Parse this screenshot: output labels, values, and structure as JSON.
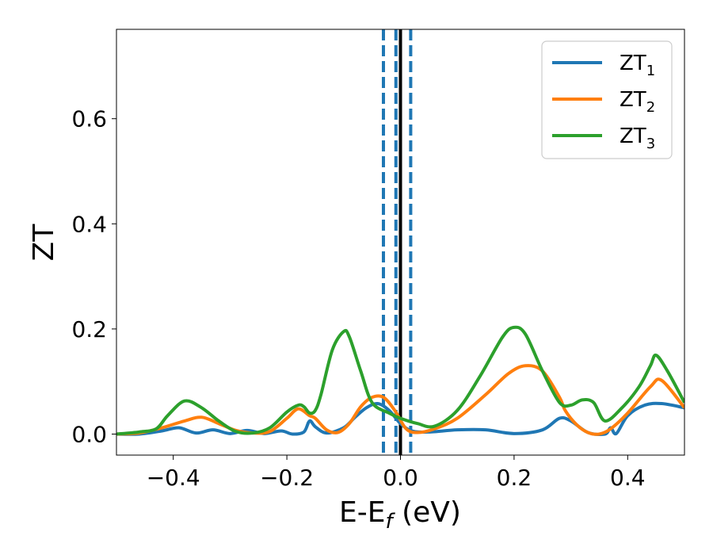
{
  "chart_data": {
    "type": "line",
    "xlabel_main": "E-E",
    "xlabel_sub": "f",
    "xlabel_unit": " (eV)",
    "ylabel": "ZT",
    "xlim": [
      -0.5,
      0.5
    ],
    "ylim": [
      -0.04,
      0.77
    ],
    "xticks": [
      -0.4,
      -0.2,
      0.0,
      0.2,
      0.4
    ],
    "xtick_labels": [
      "−0.4",
      "−0.2",
      "0.0",
      "0.2",
      "0.4"
    ],
    "yticks": [
      0.0,
      0.2,
      0.4,
      0.6
    ],
    "ytick_labels": [
      "0.0",
      "0.2",
      "0.4",
      "0.6"
    ],
    "grid": false,
    "legend_position": "top-right",
    "vlines": [
      {
        "x": 0.0,
        "style": "solid",
        "color": "#000000"
      },
      {
        "x": -0.03,
        "style": "dashed",
        "color": "#1f77b4"
      },
      {
        "x": -0.008,
        "style": "dashed",
        "color": "#1f77b4"
      },
      {
        "x": 0.018,
        "style": "dashed",
        "color": "#1f77b4"
      }
    ],
    "series": [
      {
        "name": "ZT",
        "sub": "1",
        "color": "#1f77b4",
        "x": [
          -0.5,
          -0.46,
          -0.42,
          -0.39,
          -0.36,
          -0.33,
          -0.3,
          -0.27,
          -0.24,
          -0.21,
          -0.19,
          -0.17,
          -0.16,
          -0.15,
          -0.13,
          -0.1,
          -0.08,
          -0.06,
          -0.04,
          -0.02,
          0.0,
          0.02,
          0.05,
          0.1,
          0.15,
          0.2,
          0.25,
          0.28,
          0.3,
          0.33,
          0.36,
          0.37,
          0.38,
          0.4,
          0.43,
          0.46,
          0.5
        ],
        "y": [
          0.0,
          0.0,
          0.006,
          0.012,
          0.002,
          0.008,
          0.001,
          0.007,
          0.001,
          0.006,
          0.0,
          0.004,
          0.025,
          0.014,
          0.002,
          0.012,
          0.032,
          0.05,
          0.058,
          0.045,
          0.02,
          0.006,
          0.004,
          0.008,
          0.008,
          0.001,
          0.008,
          0.03,
          0.025,
          0.003,
          0.0,
          0.012,
          0.001,
          0.035,
          0.055,
          0.058,
          0.05
        ]
      },
      {
        "name": "ZT",
        "sub": "2",
        "color": "#ff7f0e",
        "x": [
          -0.5,
          -0.46,
          -0.42,
          -0.38,
          -0.35,
          -0.32,
          -0.29,
          -0.26,
          -0.23,
          -0.2,
          -0.18,
          -0.16,
          -0.15,
          -0.13,
          -0.11,
          -0.09,
          -0.07,
          -0.05,
          -0.03,
          -0.01,
          0.01,
          0.03,
          0.06,
          0.1,
          0.15,
          0.19,
          0.22,
          0.25,
          0.28,
          0.29,
          0.31,
          0.33,
          0.35,
          0.37,
          0.4,
          0.44,
          0.46,
          0.5
        ],
        "y": [
          0.0,
          0.002,
          0.012,
          0.025,
          0.032,
          0.02,
          0.007,
          0.002,
          0.005,
          0.03,
          0.048,
          0.035,
          0.03,
          0.008,
          0.003,
          0.02,
          0.052,
          0.07,
          0.07,
          0.045,
          0.01,
          0.003,
          0.01,
          0.03,
          0.075,
          0.115,
          0.13,
          0.12,
          0.07,
          0.045,
          0.018,
          0.003,
          0.0,
          0.01,
          0.04,
          0.09,
          0.102,
          0.05
        ]
      },
      {
        "name": "ZT",
        "sub": "3",
        "color": "#2ca02c",
        "x": [
          -0.5,
          -0.46,
          -0.43,
          -0.41,
          -0.38,
          -0.35,
          -0.32,
          -0.29,
          -0.26,
          -0.23,
          -0.2,
          -0.18,
          -0.17,
          -0.16,
          -0.15,
          -0.14,
          -0.12,
          -0.1,
          -0.09,
          -0.07,
          -0.05,
          -0.02,
          0.0,
          0.03,
          0.06,
          0.1,
          0.14,
          0.18,
          0.2,
          0.22,
          0.25,
          0.28,
          0.3,
          0.32,
          0.34,
          0.36,
          0.39,
          0.42,
          0.44,
          0.45,
          0.47,
          0.5
        ],
        "y": [
          0.0,
          0.004,
          0.01,
          0.035,
          0.063,
          0.05,
          0.025,
          0.005,
          0.002,
          0.012,
          0.042,
          0.055,
          0.052,
          0.04,
          0.045,
          0.075,
          0.16,
          0.195,
          0.185,
          0.12,
          0.06,
          0.04,
          0.03,
          0.02,
          0.015,
          0.045,
          0.11,
          0.185,
          0.203,
          0.19,
          0.12,
          0.06,
          0.055,
          0.065,
          0.06,
          0.025,
          0.05,
          0.09,
          0.13,
          0.15,
          0.12,
          0.06
        ]
      }
    ]
  }
}
